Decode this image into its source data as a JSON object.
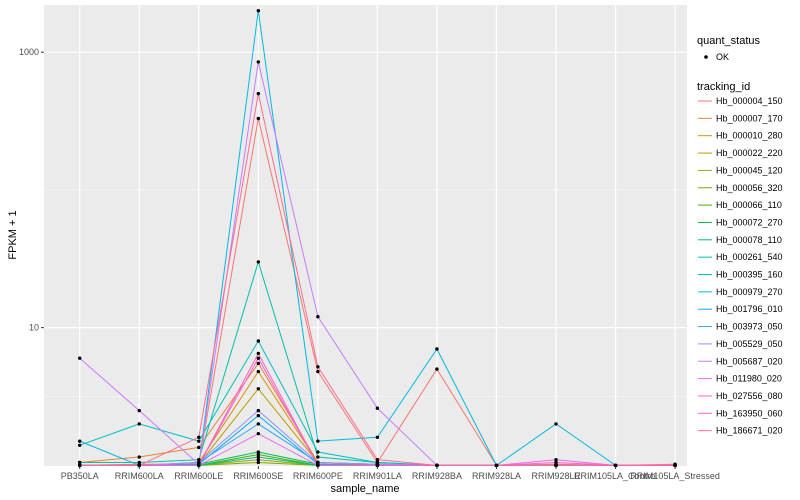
{
  "chart_data": {
    "type": "line",
    "xlabel": "sample_name",
    "ylabel": "FPKM + 1",
    "y_scale": "log10",
    "ylim": [
      0.99,
      2200
    ],
    "y_ticks": [
      10,
      1000
    ],
    "grid": true,
    "legend_position": "right",
    "categories": [
      "PB350LA",
      "RRIM600LA",
      "RRIM600LE",
      "RRIM600SE",
      "RRIM600PE",
      "RRIM901LA",
      "RRIM928BA",
      "RRIM928LA",
      "RRIM928LE",
      "RRIM105LA_Control",
      "RRIM105LA_Stressed"
    ],
    "quant_legend": {
      "title": "quant_status",
      "items": [
        "OK"
      ]
    },
    "series_legend_title": "tracking_id",
    "series": [
      {
        "name": "Hb_000004_150",
        "color": "#F8766D",
        "values": [
          1.0,
          1.02,
          1.02,
          330,
          4.8,
          1.05,
          5.0,
          1.0,
          1.02,
          1.0,
          1.0
        ]
      },
      {
        "name": "Hb_000007_170",
        "color": "#EA8331",
        "values": [
          1.05,
          1.15,
          1.35,
          5.5,
          1.05,
          1.02,
          1.0,
          1.0,
          1.0,
          1.0,
          1.0
        ]
      },
      {
        "name": "Hb_000010_280",
        "color": "#D89000",
        "values": [
          1.0,
          1.0,
          1.05,
          4.8,
          1.05,
          1.0,
          1.0,
          1.0,
          1.0,
          1.0,
          1.0
        ]
      },
      {
        "name": "Hb_000022_220",
        "color": "#C09B00",
        "values": [
          1.0,
          1.0,
          1.02,
          3.6,
          1.05,
          1.0,
          1.0,
          1.0,
          1.0,
          1.0,
          1.0
        ]
      },
      {
        "name": "Hb_000045_120",
        "color": "#A3A500",
        "values": [
          1.0,
          1.0,
          1.0,
          1.1,
          1.0,
          1.0,
          1.0,
          1.0,
          1.0,
          1.0,
          1.0
        ]
      },
      {
        "name": "Hb_000056_320",
        "color": "#7CAE00",
        "values": [
          1.0,
          1.0,
          1.0,
          1.05,
          1.0,
          1.0,
          1.0,
          1.0,
          1.0,
          1.0,
          1.0
        ]
      },
      {
        "name": "Hb_000066_110",
        "color": "#39B600",
        "values": [
          1.0,
          1.0,
          1.0,
          1.2,
          1.0,
          1.0,
          1.0,
          1.0,
          1.0,
          1.0,
          1.0
        ]
      },
      {
        "name": "Hb_000072_270",
        "color": "#00BB4E",
        "values": [
          1.0,
          1.0,
          1.02,
          1.25,
          1.02,
          1.0,
          1.0,
          1.0,
          1.0,
          1.0,
          1.0
        ]
      },
      {
        "name": "Hb_000078_110",
        "color": "#00BF7D",
        "values": [
          1.0,
          1.0,
          1.0,
          1.15,
          1.0,
          1.0,
          1.0,
          1.0,
          1.0,
          1.0,
          1.0
        ]
      },
      {
        "name": "Hb_000261_540",
        "color": "#00C1A3",
        "values": [
          1.05,
          1.05,
          1.1,
          30,
          1.15,
          1.05,
          1.0,
          1.0,
          1.0,
          1.0,
          1.0
        ]
      },
      {
        "name": "Hb_000395_160",
        "color": "#00BFC4",
        "values": [
          1.4,
          2.0,
          1.5,
          8.0,
          1.25,
          1.05,
          1.0,
          1.0,
          1.0,
          1.0,
          1.0
        ]
      },
      {
        "name": "Hb_000979_270",
        "color": "#00BAE0",
        "values": [
          1.5,
          1.0,
          1.0,
          2000,
          1.5,
          1.6,
          7.0,
          1.0,
          2.0,
          1.0,
          1.0
        ]
      },
      {
        "name": "Hb_001796_010",
        "color": "#00B0F6",
        "values": [
          1.0,
          1.0,
          1.02,
          2.3,
          1.02,
          1.0,
          1.0,
          1.0,
          1.0,
          1.0,
          1.0
        ]
      },
      {
        "name": "Hb_003973_050",
        "color": "#35A2FF",
        "values": [
          1.0,
          1.0,
          1.05,
          2.0,
          1.05,
          1.02,
          1.0,
          1.0,
          1.0,
          1.0,
          1.0
        ]
      },
      {
        "name": "Hb_005529_050",
        "color": "#9590FF",
        "values": [
          1.0,
          1.0,
          1.05,
          2.5,
          1.05,
          1.02,
          1.0,
          1.0,
          1.0,
          1.0,
          1.0
        ]
      },
      {
        "name": "Hb_005687_020",
        "color": "#C77CFF",
        "values": [
          6.0,
          2.5,
          1.02,
          850,
          12.0,
          2.6,
          1.0,
          1.0,
          1.0,
          1.0,
          1.0
        ]
      },
      {
        "name": "Hb_011980_020",
        "color": "#E76BF3",
        "values": [
          1.0,
          1.0,
          1.0,
          1.7,
          1.0,
          1.0,
          1.0,
          1.0,
          1.1,
          1.0,
          1.0
        ]
      },
      {
        "name": "Hb_027556_080",
        "color": "#FA62DB",
        "values": [
          1.0,
          1.0,
          1.0,
          6.0,
          1.0,
          1.0,
          1.0,
          1.0,
          1.0,
          1.0,
          1.0
        ]
      },
      {
        "name": "Hb_163950_060",
        "color": "#FF62BC",
        "values": [
          1.0,
          1.0,
          1.0,
          6.5,
          1.0,
          1.0,
          1.0,
          1.0,
          1.05,
          1.0,
          1.0
        ]
      },
      {
        "name": "Hb_186671_020",
        "color": "#FF6C91",
        "values": [
          1.0,
          1.0,
          1.6,
          500,
          5.2,
          1.1,
          1.0,
          1.0,
          1.0,
          1.0,
          1.02
        ]
      }
    ]
  }
}
